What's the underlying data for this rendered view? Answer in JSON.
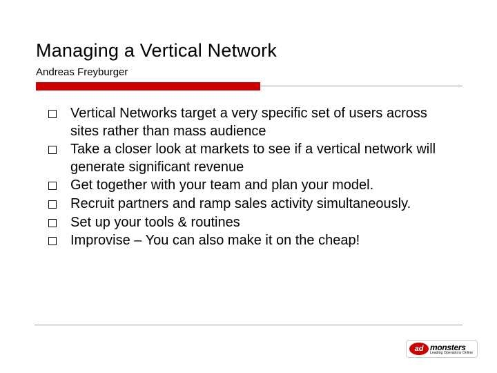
{
  "slide": {
    "title": "Managing a Vertical Network",
    "subtitle": "Andreas Freyburger",
    "accent_color": "#cc0000",
    "rule_color": "#9a9a9a",
    "background_color": "#ffffff",
    "title_fontsize": 27,
    "subtitle_fontsize": 15,
    "body_fontsize": 20,
    "bullets": [
      "Vertical Networks target a very specific set of users across sites rather than mass audience",
      "Take a closer look at markets to see if a vertical network will generate significant revenue",
      "Get together with your team and plan your model.",
      "Recruit partners and ramp sales activity simultaneously.",
      "Set up your tools & routines",
      "Improvise – You can also make it on the cheap!"
    ]
  },
  "logo": {
    "oval_text": "ad",
    "word": "monsters",
    "tagline": "Leading Operations Online",
    "oval_color": "#cc0000"
  }
}
